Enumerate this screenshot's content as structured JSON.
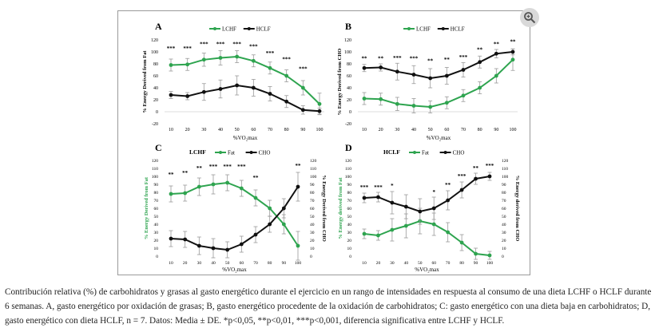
{
  "zoom_icon": "zoom-in-icon",
  "caption": "Contribución relativa (%) de carbohidratos y grasas al gasto energético durante el ejercicio en un rango de intensidades en respuesta al consumo de una dieta LCHF o HCLF durante 6 semanas. A, gasto energético por oxidación de grasas; B, gasto energético procedente de la oxidación de carbohidratos; C: gasto energético con una dieta baja en carbohidratos; D, gasto energético con dieta HCLF, n = 7. Datos: Media ± DE. *p<0,05, **p<0,01, ***p<0,001, diferencia significativa entre LCHF y HCLF.",
  "colors": {
    "green": "#2ea44f",
    "black": "#111111",
    "error": "#9a9a9a"
  },
  "chart_data": [
    {
      "panel": "A",
      "type": "line",
      "xlabel": "%VO₂max",
      "ylabel": "% Energy Derived from Fat",
      "x": [
        10,
        20,
        30,
        40,
        50,
        60,
        70,
        80,
        90,
        100
      ],
      "ylim": [
        -20,
        120
      ],
      "yticks": [
        -20,
        0,
        20,
        40,
        60,
        80,
        100,
        120
      ],
      "legend": {
        "placement": "top",
        "style": "A"
      },
      "series": [
        {
          "name": "LCHF",
          "color": "green",
          "values": [
            78,
            79,
            87,
            90,
            92,
            85,
            73,
            60,
            40,
            13
          ],
          "errors": [
            10,
            10,
            11,
            12,
            10,
            10,
            10,
            10,
            12,
            18
          ]
        },
        {
          "name": "HCLF",
          "color": "black",
          "values": [
            28,
            26,
            33,
            38,
            44,
            40,
            30,
            17,
            3,
            1
          ],
          "errors": [
            6,
            6,
            14,
            15,
            16,
            14,
            12,
            10,
            7,
            5
          ]
        }
      ],
      "sig": [
        "***",
        "***",
        "***",
        "***",
        "***",
        "***",
        "***",
        "***",
        "***",
        ""
      ],
      "sig_yval": [
        103,
        103,
        110,
        110,
        110,
        106,
        95,
        85,
        69,
        0
      ]
    },
    {
      "panel": "B",
      "type": "line",
      "xlabel": "%VO₂max",
      "ylabel": "% Energy Derived from CHO",
      "x": [
        10,
        20,
        30,
        40,
        50,
        60,
        70,
        80,
        90,
        100
      ],
      "ylim": [
        -20,
        120
      ],
      "yticks": [
        -20,
        0,
        20,
        40,
        60,
        80,
        100,
        120
      ],
      "legend": {
        "placement": "top",
        "style": "A"
      },
      "series": [
        {
          "name": "LCHF",
          "color": "green",
          "values": [
            22,
            21,
            13,
            10,
            8,
            15,
            27,
            40,
            60,
            87
          ],
          "errors": [
            10,
            10,
            11,
            12,
            10,
            10,
            10,
            10,
            12,
            18
          ]
        },
        {
          "name": "HCLF",
          "color": "black",
          "values": [
            73,
            74,
            67,
            62,
            56,
            60,
            70,
            83,
            97,
            100
          ],
          "errors": [
            6,
            6,
            14,
            15,
            16,
            14,
            12,
            10,
            7,
            5
          ]
        }
      ],
      "sig": [
        "**",
        "**",
        "***",
        "***",
        "**",
        "**",
        "***",
        "**",
        "**",
        "**"
      ],
      "sig_yval": [
        86,
        86,
        87,
        86,
        82,
        84,
        88,
        101,
        110,
        114
      ]
    },
    {
      "panel": "C",
      "type": "line",
      "title": "LCHF",
      "xlabel": "%VO₂max",
      "ylabel": "% Energy Derived from Fat",
      "ylabel_right": "% Energy Derived from CHO",
      "x": [
        10,
        20,
        30,
        40,
        50,
        60,
        70,
        80,
        90,
        100
      ],
      "ylim": [
        0,
        120
      ],
      "yticks": [
        0,
        10,
        20,
        30,
        40,
        50,
        60,
        70,
        80,
        90,
        100,
        110,
        120
      ],
      "legend": {
        "placement": "top",
        "style": "C"
      },
      "series": [
        {
          "name": "Fat",
          "color": "green",
          "axis": "left",
          "values": [
            78,
            79,
            87,
            90,
            92,
            85,
            73,
            60,
            40,
            13
          ],
          "errors": [
            10,
            10,
            11,
            12,
            10,
            10,
            10,
            10,
            12,
            18
          ]
        },
        {
          "name": "CHO",
          "color": "black",
          "axis": "right",
          "values": [
            22,
            21,
            13,
            10,
            8,
            15,
            27,
            40,
            60,
            87
          ],
          "errors": [
            10,
            10,
            11,
            12,
            10,
            10,
            10,
            10,
            12,
            18
          ]
        }
      ],
      "sig": [
        "**",
        "**",
        "**",
        "***",
        "***",
        "***",
        "**",
        "",
        "",
        "**"
      ],
      "sig_yval": [
        100,
        102,
        108,
        110,
        110,
        110,
        96,
        0,
        0,
        111
      ]
    },
    {
      "panel": "D",
      "type": "line",
      "title": "HCLF",
      "xlabel": "%VO₂max",
      "ylabel": "% Energy derived from Fat",
      "ylabel_right": "% Energy derived from CHO",
      "x": [
        10,
        20,
        30,
        40,
        50,
        60,
        70,
        80,
        90,
        100
      ],
      "ylim": [
        0,
        120
      ],
      "yticks": [
        0,
        10,
        20,
        30,
        40,
        50,
        60,
        70,
        80,
        90,
        100,
        110,
        120
      ],
      "legend": {
        "placement": "top",
        "style": "C"
      },
      "series": [
        {
          "name": "Fat",
          "color": "green",
          "axis": "left",
          "values": [
            28,
            26,
            33,
            38,
            44,
            40,
            30,
            17,
            3,
            1
          ],
          "errors": [
            6,
            6,
            14,
            15,
            16,
            14,
            12,
            10,
            7,
            5
          ]
        },
        {
          "name": "CHO",
          "color": "black",
          "axis": "right",
          "values": [
            73,
            74,
            67,
            62,
            56,
            60,
            70,
            83,
            97,
            100
          ],
          "errors": [
            6,
            6,
            14,
            15,
            16,
            14,
            12,
            10,
            7,
            5
          ]
        }
      ],
      "sig": [
        "***",
        "***",
        "*",
        "",
        "",
        "*",
        "**",
        "***",
        "**",
        "***"
      ],
      "sig_yval": [
        84,
        84,
        86,
        0,
        0,
        78,
        87,
        98,
        108,
        111
      ]
    }
  ]
}
